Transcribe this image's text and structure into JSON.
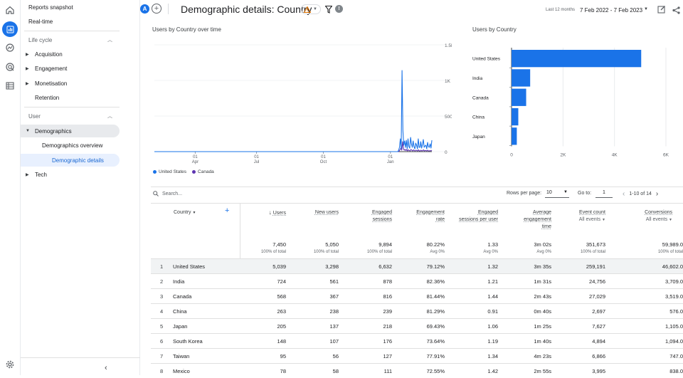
{
  "sidebar": {
    "items": [
      {
        "label": "Reports snapshot"
      },
      {
        "label": "Real-time"
      },
      {
        "section": "Life cycle"
      },
      {
        "label": "Acquisition"
      },
      {
        "label": "Engagement"
      },
      {
        "label": "Monetisation"
      },
      {
        "label": "Retention"
      },
      {
        "section": "User"
      },
      {
        "label": "Demographics"
      },
      {
        "label": "Demographics overview"
      },
      {
        "label": "Demographic details"
      },
      {
        "label": "Tech"
      }
    ]
  },
  "header": {
    "avatar_letter": "A",
    "add_label": "+",
    "title": "Demographic details: Country",
    "date_small": "Last 12 months",
    "date_range": "7 Feb 2022 - 7 Feb 2023"
  },
  "line_chart": {
    "title": "Users by Country over time",
    "y_ticks": [
      "1.5K",
      "1K",
      "500",
      "0"
    ],
    "x_ticks": [
      {
        "day": "01",
        "month": "Apr"
      },
      {
        "day": "01",
        "month": "Jul"
      },
      {
        "day": "01",
        "month": "Oct"
      },
      {
        "day": "01",
        "month": "Jan"
      }
    ],
    "legend": [
      {
        "name": "United States",
        "color": "#1a73e8"
      },
      {
        "name": "Canada",
        "color": "#5e35b1"
      }
    ]
  },
  "bar_chart": {
    "title": "Users by Country",
    "x_ticks": [
      "0",
      "2K",
      "4K",
      "6K"
    ]
  },
  "chart_data": [
    {
      "type": "line",
      "title": "Users by Country over time",
      "ylim": [
        0,
        1500
      ],
      "series": [
        {
          "name": "United States",
          "values": [
            0,
            0,
            0,
            0,
            0,
            0,
            0,
            0,
            0,
            0,
            0,
            0,
            0,
            0,
            0,
            0,
            0,
            0,
            0,
            0,
            0,
            0,
            0,
            0,
            0,
            0,
            0,
            0,
            0,
            0,
            0,
            0,
            0,
            0,
            0,
            0,
            0,
            0,
            0,
            0,
            0,
            0,
            0,
            0,
            0,
            0,
            0,
            0,
            0,
            0,
            0,
            0,
            0,
            0,
            0,
            0,
            0,
            0,
            0,
            0,
            0,
            0,
            0,
            0,
            0,
            0,
            0,
            0,
            0,
            0,
            0,
            0,
            0,
            0,
            0,
            0,
            0,
            0,
            0,
            0,
            0,
            0,
            0,
            0,
            0,
            0,
            0,
            0,
            0,
            0,
            0,
            0,
            0,
            0,
            0,
            0,
            0,
            0,
            0,
            0,
            0,
            0,
            0,
            0,
            0,
            0,
            0,
            0,
            0,
            0,
            0,
            0,
            0,
            0,
            0,
            0,
            0,
            0,
            0,
            0,
            0,
            0,
            0,
            0,
            0,
            0,
            0,
            0,
            0,
            0,
            0,
            0,
            0,
            0,
            0,
            0,
            0,
            0,
            0,
            0,
            0,
            0,
            0,
            0,
            0,
            0,
            0,
            0,
            0,
            0,
            0,
            0,
            0,
            0,
            0,
            0,
            0,
            0,
            0,
            0,
            0,
            0,
            0,
            0,
            0,
            0,
            0,
            0,
            0,
            0,
            0,
            0,
            0,
            0,
            0,
            0,
            0,
            0,
            0,
            0,
            0,
            0,
            0,
            0,
            0,
            0,
            0,
            0,
            0,
            0,
            0,
            0,
            0,
            0,
            0,
            0,
            0,
            0,
            0,
            0,
            0,
            0,
            0,
            0,
            0,
            0,
            0,
            0,
            0,
            0,
            0,
            0,
            0,
            0,
            0,
            0,
            0,
            0,
            0,
            0,
            0,
            0,
            0,
            0,
            0,
            0,
            0,
            0,
            0,
            0,
            0,
            0,
            0,
            0,
            0,
            0,
            0,
            0,
            0,
            0,
            0,
            0,
            0,
            0,
            0,
            0,
            0,
            0,
            0,
            0,
            0,
            0,
            0,
            0,
            0,
            0,
            0,
            0,
            0,
            0,
            0,
            0,
            0,
            0,
            0,
            0,
            0,
            0,
            0,
            0,
            0,
            0,
            0,
            0,
            0,
            0,
            0,
            0,
            0,
            0,
            0,
            0,
            0,
            0,
            0,
            0,
            0,
            20,
            60,
            180,
            40,
            1140,
            300,
            90,
            150,
            60,
            160,
            40,
            180,
            70,
            50,
            200,
            110,
            60,
            150,
            70,
            40,
            120,
            90,
            40,
            180,
            60,
            60,
            140,
            50,
            100,
            170,
            60,
            80,
            90,
            40,
            130,
            70,
            60,
            110,
            50,
            160
          ]
        },
        {
          "name": "Canada",
          "values": [
            0,
            0,
            0,
            0,
            0,
            0,
            0,
            0,
            0,
            0,
            0,
            0,
            0,
            0,
            0,
            0,
            0,
            0,
            0,
            0,
            0,
            0,
            0,
            0,
            0,
            0,
            0,
            0,
            0,
            0,
            0,
            0,
            0,
            0,
            0,
            0,
            0,
            0,
            0,
            0,
            0,
            0,
            0,
            0,
            0,
            0,
            0,
            0,
            0,
            0,
            0,
            0,
            0,
            0,
            0,
            0,
            0,
            0,
            0,
            0,
            0,
            0,
            0,
            0,
            0,
            0,
            0,
            0,
            0,
            0,
            0,
            0,
            0,
            0,
            0,
            0,
            0,
            0,
            0,
            0,
            0,
            0,
            0,
            0,
            0,
            0,
            0,
            0,
            0,
            0,
            0,
            0,
            0,
            0,
            0,
            0,
            0,
            0,
            0,
            0,
            0,
            0,
            0,
            0,
            0,
            0,
            0,
            0,
            0,
            0,
            0,
            0,
            0,
            0,
            0,
            0,
            0,
            0,
            0,
            0,
            0,
            0,
            0,
            0,
            0,
            0,
            0,
            0,
            0,
            0,
            0,
            0,
            0,
            0,
            0,
            0,
            0,
            0,
            0,
            0,
            0,
            0,
            0,
            0,
            0,
            0,
            0,
            0,
            0,
            0,
            0,
            0,
            0,
            0,
            0,
            0,
            0,
            0,
            0,
            0,
            0,
            0,
            0,
            0,
            0,
            0,
            0,
            0,
            0,
            0,
            0,
            0,
            0,
            0,
            0,
            0,
            0,
            0,
            0,
            0,
            0,
            0,
            0,
            0,
            0,
            0,
            0,
            0,
            0,
            0,
            0,
            0,
            0,
            0,
            0,
            0,
            0,
            0,
            0,
            0,
            0,
            0,
            0,
            0,
            0,
            0,
            0,
            0,
            0,
            0,
            0,
            0,
            0,
            0,
            0,
            0,
            0,
            0,
            0,
            0,
            0,
            0,
            0,
            0,
            0,
            0,
            0,
            0,
            0,
            0,
            0,
            0,
            0,
            0,
            0,
            0,
            0,
            0,
            0,
            0,
            0,
            0,
            0,
            0,
            0,
            0,
            0,
            0,
            0,
            0,
            0,
            0,
            0,
            0,
            0,
            0,
            0,
            0,
            0,
            0,
            0,
            0,
            0,
            0,
            0,
            0,
            0,
            0,
            0,
            0,
            0,
            0,
            0,
            0,
            0,
            0,
            0,
            0,
            0,
            0,
            0,
            0,
            0,
            0,
            0,
            0,
            0,
            0,
            0,
            0,
            0,
            0,
            0,
            10,
            30,
            50,
            20,
            140,
            40,
            20,
            30,
            15,
            30,
            10,
            25,
            15,
            10,
            30,
            20,
            10,
            25,
            15,
            10,
            20,
            15,
            10,
            25,
            10,
            10,
            20,
            10,
            15,
            25,
            10,
            15,
            15,
            10,
            20,
            10,
            10,
            15,
            10,
            20
          ]
        }
      ]
    },
    {
      "type": "bar",
      "title": "Users by Country",
      "categories": [
        "United States",
        "India",
        "Canada",
        "China",
        "Japan"
      ],
      "values": [
        5039,
        724,
        568,
        263,
        205
      ],
      "xlim": [
        0,
        6000
      ]
    }
  ],
  "table": {
    "search_placeholder": "Search...",
    "rows_per_page_label": "Rows per page:",
    "rows_per_page": "10",
    "goto_label": "Go to:",
    "goto_value": "1",
    "range": "1-10 of 14",
    "columns": [
      {
        "label": "Country"
      },
      {
        "label": "Users"
      },
      {
        "label": "New users"
      },
      {
        "label": "Engaged sessions"
      },
      {
        "label": "Engagement rate"
      },
      {
        "label": "Engaged sessions per user"
      },
      {
        "label": "Average engagement time"
      },
      {
        "label": "Event count",
        "sub": "All events"
      },
      {
        "label": "Conversions",
        "sub": "All events"
      }
    ],
    "totals": [
      {
        "v": "7,450",
        "s": "100% of total"
      },
      {
        "v": "5,050",
        "s": "100% of total"
      },
      {
        "v": "9,894",
        "s": "100% of total"
      },
      {
        "v": "80.22%",
        "s": "Avg 0%"
      },
      {
        "v": "1.33",
        "s": "Avg 0%"
      },
      {
        "v": "3m 02s",
        "s": "Avg 0%"
      },
      {
        "v": "351,673",
        "s": "100% of total"
      },
      {
        "v": "59,989.0",
        "s": "100% of total"
      }
    ],
    "rows": [
      {
        "i": "1",
        "country": "United States",
        "c": [
          "5,039",
          "3,298",
          "6,632",
          "79.12%",
          "1.32",
          "3m 35s",
          "259,191",
          "46,602.0"
        ]
      },
      {
        "i": "2",
        "country": "India",
        "c": [
          "724",
          "561",
          "878",
          "82.36%",
          "1.21",
          "1m 31s",
          "24,756",
          "3,709.0"
        ]
      },
      {
        "i": "3",
        "country": "Canada",
        "c": [
          "568",
          "367",
          "816",
          "81.44%",
          "1.44",
          "2m 43s",
          "27,029",
          "3,519.0"
        ]
      },
      {
        "i": "4",
        "country": "China",
        "c": [
          "263",
          "238",
          "239",
          "81.29%",
          "0.91",
          "0m 40s",
          "2,697",
          "576.0"
        ]
      },
      {
        "i": "5",
        "country": "Japan",
        "c": [
          "205",
          "137",
          "218",
          "69.43%",
          "1.06",
          "1m 25s",
          "7,627",
          "1,105.0"
        ]
      },
      {
        "i": "6",
        "country": "South Korea",
        "c": [
          "148",
          "107",
          "176",
          "73.64%",
          "1.19",
          "1m 40s",
          "4,894",
          "1,094.0"
        ]
      },
      {
        "i": "7",
        "country": "Taiwan",
        "c": [
          "95",
          "56",
          "127",
          "77.91%",
          "1.34",
          "4m 23s",
          "6,866",
          "747.0"
        ]
      },
      {
        "i": "8",
        "country": "Mexico",
        "c": [
          "78",
          "58",
          "111",
          "72.55%",
          "1.42",
          "2m 55s",
          "3,995",
          "838.0"
        ]
      }
    ]
  },
  "colors": {
    "accent": "#1a73e8",
    "canada": "#5e35b1"
  }
}
